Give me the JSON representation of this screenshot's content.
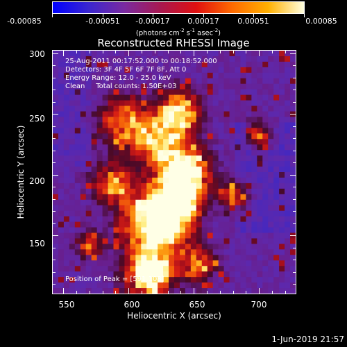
{
  "colorbar": {
    "tick_labels": [
      "-0.00085",
      "-0.00051",
      "-0.00017",
      "0.00017",
      "0.00051",
      "0.00085"
    ],
    "unit_label": "(photons cm",
    "unit_exp1": "-2",
    "unit_mid1": " s",
    "unit_exp2": "-1",
    "unit_mid2": " asec",
    "unit_exp3": "-2",
    "unit_end": ")",
    "colors": [
      "#0000ff",
      "#3a26d0",
      "#7a2aa0",
      "#a81850",
      "#e01010",
      "#ff6a00",
      "#ffb000",
      "#ffffe0"
    ]
  },
  "title": "Reconstructed RHESSI Image",
  "info": {
    "line1": "25-Aug-2011 00:17:52.000 to 00:18:52.000",
    "line2": "Detectors: 3F 4F 5F 6F 7F 8F, Att 0",
    "line3": "Energy Range: 12.0 - 25.0 keV",
    "line4": "Clean     Total counts: 1.50E+03",
    "peak": "Position of Peak = [591,108]"
  },
  "chart_data": {
    "type": "heatmap",
    "title": "Reconstructed RHESSI Image",
    "xlabel": "Heliocentric X (arcsec)",
    "ylabel": "Heliocentric Y (arcsec)",
    "xlim": [
      542,
      728
    ],
    "ylim": [
      102,
      302
    ],
    "xticks": [
      550,
      600,
      650,
      700
    ],
    "yticks": [
      150,
      200,
      250,
      300
    ],
    "value_range": [
      -0.00085,
      0.00085
    ],
    "colormap": "blue-purple-red-yellow-white",
    "peak_position": [
      591,
      108
    ]
  },
  "xticks": [
    "550",
    "600",
    "650",
    "700"
  ],
  "yticks": [
    "150",
    "200",
    "250",
    "300"
  ],
  "xlabel": "Heliocentric X (arcsec)",
  "ylabel": "Heliocentric Y (arcsec)",
  "timestamp": "1-Jun-2019 21:57"
}
